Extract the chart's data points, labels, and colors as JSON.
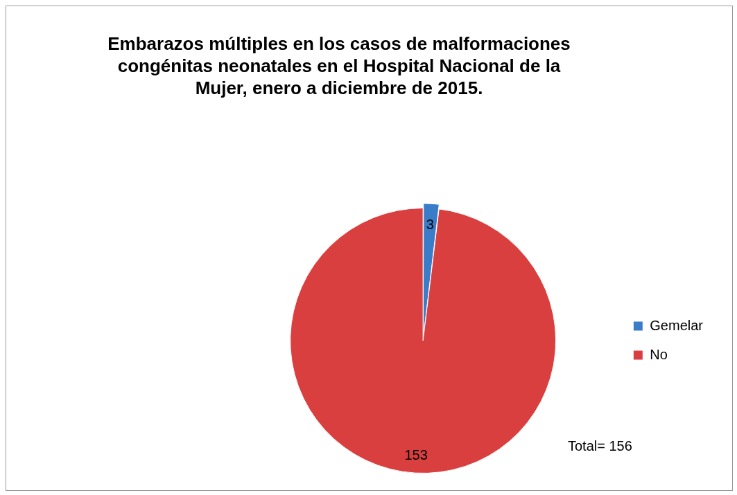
{
  "chart_data": {
    "type": "pie",
    "title": "Embarazos múltiples en los casos de malformaciones congénitas neonatales en el Hospital Nacional de la Mujer, enero a diciembre de 2015.",
    "categories": [
      "Gemelar",
      "No"
    ],
    "values": [
      3,
      153
    ],
    "colors": [
      "#3a7cc8",
      "#d93f3f"
    ],
    "data_labels": true,
    "legend": "right",
    "annotations": [
      "Total= 156"
    ]
  }
}
